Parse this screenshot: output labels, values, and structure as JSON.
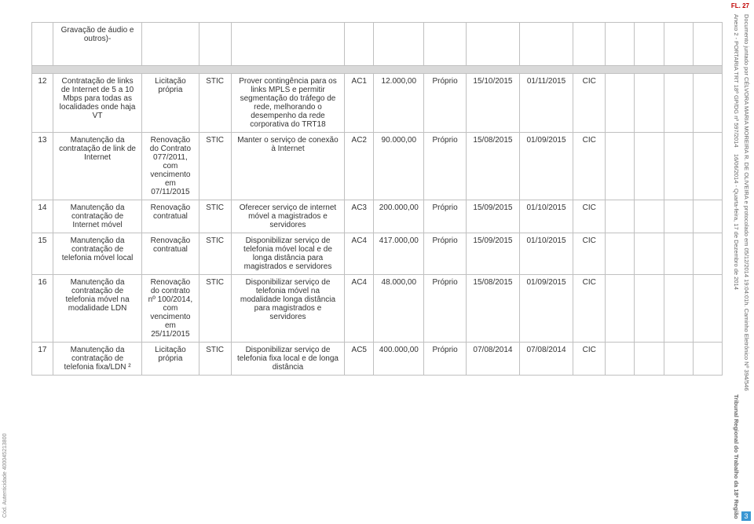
{
  "header": {
    "fl": "FL. 27"
  },
  "side_left": "Cód. Autenticidade 400045213800",
  "side_right_line1": "Anexo 2 - PORTARIA TRT 18ª GP/DG nº 597/2014",
  "side_right_line2": "16/06/2014 - Quarta-feira, 17 de Dezembro de 2014",
  "side_right_line3": "Tribunal Regional do Trabalho da 18ª Região",
  "side_right_line4": "Documento juntado por CÉLVORA MARIA MOREIRA R. DE OLIVEIRA e protocolado em 05/12/2014 19:04:01h. Caminho Eletrônico Nº 394/546",
  "page_num": "3",
  "top_row_desc": "Gravação de áudio e outros)-",
  "rows": [
    {
      "n": "12",
      "a": "Contratação de links de Internet de 5 a 10 Mbps para todas as localidades onde haja VT",
      "b": "Licitação própria",
      "c": "STIC",
      "d": "Prover contingência para os links MPLS e permitir segmentação do tráfego de rede, melhorando o desempenho da rede corporativa do TRT18",
      "e": "AC1",
      "f": "12.000,00",
      "g": "Próprio",
      "h": "15/10/2015",
      "i": "01/11/2015",
      "j": "CIC",
      "k": "",
      "l": "",
      "m": "",
      "o": ""
    },
    {
      "n": "13",
      "a": "Manutenção da contratação de link de Internet",
      "b": "Renovação do Contrato 077/2011, com vencimento em 07/11/2015",
      "c": "STIC",
      "d": "Manter o serviço de conexão à Internet",
      "e": "AC2",
      "f": "90.000,00",
      "g": "Próprio",
      "h": "15/08/2015",
      "i": "01/09/2015",
      "j": "CIC",
      "k": "",
      "l": "",
      "m": "",
      "o": ""
    },
    {
      "n": "14",
      "a": "Manutenção da contratação de Internet móvel",
      "b": "Renovação contratual",
      "c": "STIC",
      "d": "Oferecer serviço de internet móvel a magistrados e servidores",
      "e": "AC3",
      "f": "200.000,00",
      "g": "Próprio",
      "h": "15/09/2015",
      "i": "01/10/2015",
      "j": "CIC",
      "k": "",
      "l": "",
      "m": "",
      "o": ""
    },
    {
      "n": "15",
      "a": "Manutenção da contratação de telefonia móvel local",
      "b": "Renovação contratual",
      "c": "STIC",
      "d": "Disponibilizar serviço de telefonia móvel local e de longa distância para magistrados e servidores",
      "e": "AC4",
      "f": "417.000,00",
      "g": "Próprio",
      "h": "15/09/2015",
      "i": "01/10/2015",
      "j": "CIC",
      "k": "",
      "l": "",
      "m": "",
      "o": ""
    },
    {
      "n": "16",
      "a": "Manutenção da contratação de telefonia móvel na modalidade LDN",
      "b": "Renovação do contrato nº 100/2014, com vencimento em 25/11/2015",
      "c": "STIC",
      "d": "Disponibilizar serviço de telefonia móvel na modalidade longa distância para magistrados e servidores",
      "e": "AC4",
      "f": "48.000,00",
      "g": "Próprio",
      "h": "15/08/2015",
      "i": "01/09/2015",
      "j": "CIC",
      "k": "",
      "l": "",
      "m": "",
      "o": ""
    },
    {
      "n": "17",
      "a": "Manutenção da contratação de telefonia fixa/LDN ²",
      "b": "Licitação própria",
      "c": "STIC",
      "d": "Disponibilizar serviço de telefonia fixa local e de longa distância",
      "e": "AC5",
      "f": "400.000,00",
      "g": "Próprio",
      "h": "07/08/2014",
      "i": "07/08/2014",
      "j": "CIC",
      "k": "",
      "l": "",
      "m": "",
      "o": ""
    }
  ]
}
